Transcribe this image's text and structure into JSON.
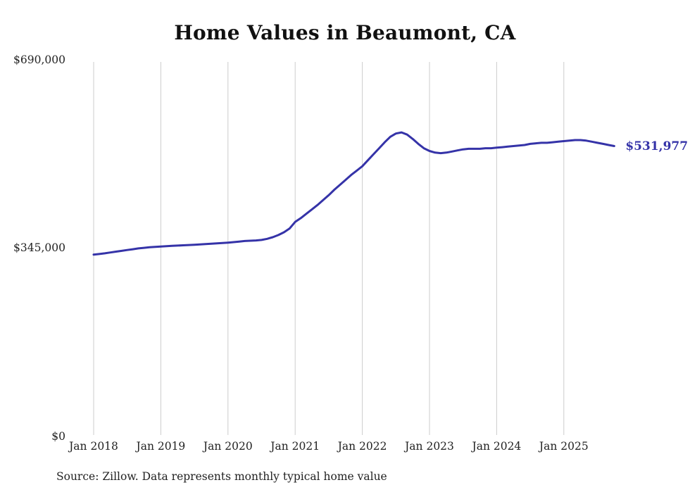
{
  "chart_data": {
    "type": "line",
    "title": "Home Values in Beaumont, CA",
    "x_start": "2018-01",
    "x_interval": "monthly",
    "x_tick_labels": [
      "Jan 2018",
      "Jan 2019",
      "Jan 2020",
      "Jan 2021",
      "Jan 2022",
      "Jan 2023",
      "Jan 2024",
      "Jan 2025"
    ],
    "y_tick_labels": [
      "$690,000",
      "$345,000",
      "$0"
    ],
    "y_tick_values": [
      690000,
      345000,
      0
    ],
    "ylim": [
      0,
      690000
    ],
    "grid": "vertical-only",
    "legend": "none",
    "line_color": "#3533a8",
    "grid_color": "#cccccc",
    "end_label": "$531,977",
    "latest_value": 531977,
    "source": "Source: Zillow. Data represents monthly typical home value",
    "series": [
      {
        "name": "Typical home value",
        "values": [
          333000,
          334200,
          335500,
          337000,
          338500,
          340000,
          341500,
          343000,
          344500,
          345500,
          346500,
          347300,
          348000,
          348600,
          349200,
          349700,
          350200,
          350700,
          351200,
          351800,
          352400,
          353000,
          353600,
          354300,
          355000,
          356000,
          357000,
          358000,
          358500,
          359000,
          360000,
          362000,
          365000,
          369000,
          374000,
          381000,
          393000,
          400000,
          408000,
          416000,
          424000,
          433000,
          442000,
          452000,
          461000,
          470000,
          479000,
          487000,
          495000,
          506000,
          517000,
          528000,
          539000,
          549000,
          555000,
          557000,
          553000,
          545000,
          536000,
          528000,
          523000,
          520000,
          519000,
          520000,
          522000,
          524000,
          526000,
          527000,
          527000,
          527000,
          528000,
          528000,
          529000,
          530000,
          531000,
          532000,
          533000,
          534000,
          536000,
          537000,
          538000,
          538000,
          539000,
          540000,
          541000,
          542000,
          543000,
          543000,
          542000,
          540000,
          538000,
          536000,
          534000,
          531977
        ]
      }
    ]
  }
}
